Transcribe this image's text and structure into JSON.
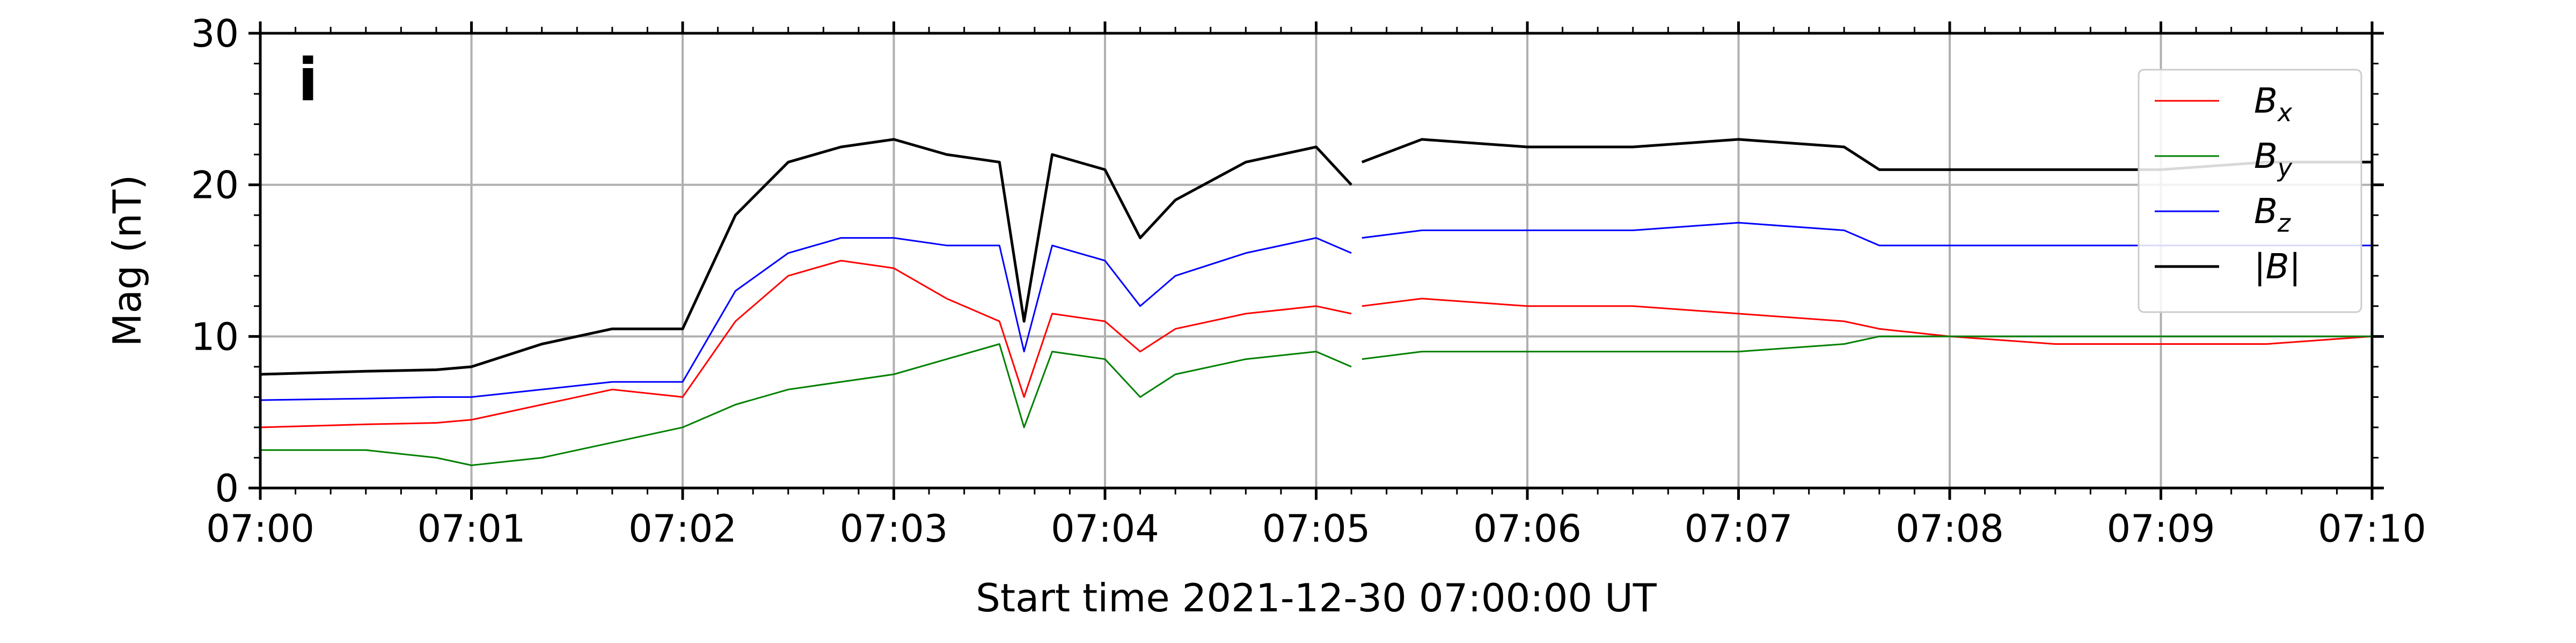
{
  "chart_data": {
    "type": "line",
    "panel_label": "i",
    "xlabel": "Start time 2021-12-30 07:00:00 UT",
    "ylabel": "Mag (nT)",
    "xlim": [
      "07:00",
      "07:10"
    ],
    "ylim": [
      0,
      30
    ],
    "x_ticks": [
      "07:00",
      "07:01",
      "07:02",
      "07:03",
      "07:04",
      "07:05",
      "07:06",
      "07:07",
      "07:08",
      "07:09",
      "07:10"
    ],
    "y_ticks": [
      "0",
      "10",
      "20",
      "30"
    ],
    "grid": true,
    "legend_position": "top-right",
    "data_gap": [
      "07:05:10",
      "07:05:13"
    ],
    "x_times": [
      "07:00:00",
      "07:00:30",
      "07:00:50",
      "07:01:00",
      "07:01:20",
      "07:01:40",
      "07:02:00",
      "07:02:15",
      "07:02:30",
      "07:02:45",
      "07:03:00",
      "07:03:15",
      "07:03:30",
      "07:03:37",
      "07:03:45",
      "07:04:00",
      "07:04:10",
      "07:04:20",
      "07:04:40",
      "07:05:00",
      "07:05:10",
      "07:05:13",
      "07:05:30",
      "07:06:00",
      "07:06:30",
      "07:07:00",
      "07:07:30",
      "07:07:40",
      "07:08:00",
      "07:08:30",
      "07:09:00",
      "07:09:30",
      "07:10:00"
    ],
    "series": [
      {
        "name": "B_x",
        "color": "#ff0000",
        "values": [
          4.0,
          4.2,
          4.3,
          4.5,
          5.5,
          6.5,
          6.0,
          11.0,
          14.0,
          15.0,
          14.5,
          12.5,
          11.0,
          6.0,
          11.5,
          11.0,
          9.0,
          10.5,
          11.5,
          12.0,
          11.5,
          12.0,
          12.5,
          12.0,
          12.0,
          11.5,
          11.0,
          10.5,
          10.0,
          9.5,
          9.5,
          9.5,
          10.0
        ]
      },
      {
        "name": "B_y",
        "color": "#008000",
        "values": [
          2.5,
          2.5,
          2.0,
          1.5,
          2.0,
          3.0,
          4.0,
          5.5,
          6.5,
          7.0,
          7.5,
          8.5,
          9.5,
          4.0,
          9.0,
          8.5,
          6.0,
          7.5,
          8.5,
          9.0,
          8.0,
          8.5,
          9.0,
          9.0,
          9.0,
          9.0,
          9.5,
          10.0,
          10.0,
          10.0,
          10.0,
          10.0,
          10.0
        ]
      },
      {
        "name": "B_z",
        "color": "#0000ff",
        "values": [
          5.8,
          5.9,
          6.0,
          6.0,
          6.5,
          7.0,
          7.0,
          13.0,
          15.5,
          16.5,
          16.5,
          16.0,
          16.0,
          9.0,
          16.0,
          15.0,
          12.0,
          14.0,
          15.5,
          16.5,
          15.5,
          16.5,
          17.0,
          17.0,
          17.0,
          17.5,
          17.0,
          16.0,
          16.0,
          16.0,
          16.0,
          16.0,
          16.0
        ]
      },
      {
        "name": "|B|",
        "color": "#000000",
        "values": [
          7.5,
          7.7,
          7.8,
          8.0,
          9.5,
          10.5,
          10.5,
          18.0,
          21.5,
          22.5,
          23.0,
          22.0,
          21.5,
          11.0,
          22.0,
          21.0,
          16.5,
          19.0,
          21.5,
          22.5,
          20.0,
          21.5,
          23.0,
          22.5,
          22.5,
          23.0,
          22.5,
          21.0,
          21.0,
          21.0,
          21.0,
          21.5,
          21.5
        ]
      }
    ]
  },
  "legend": {
    "items": [
      {
        "base": "B",
        "sub": "x",
        "color": "#ff0000"
      },
      {
        "base": "B",
        "sub": "y",
        "color": "#008000"
      },
      {
        "base": "B",
        "sub": "z",
        "color": "#0000ff"
      },
      {
        "base": "|B|",
        "sub": "",
        "color": "#000000"
      }
    ]
  }
}
